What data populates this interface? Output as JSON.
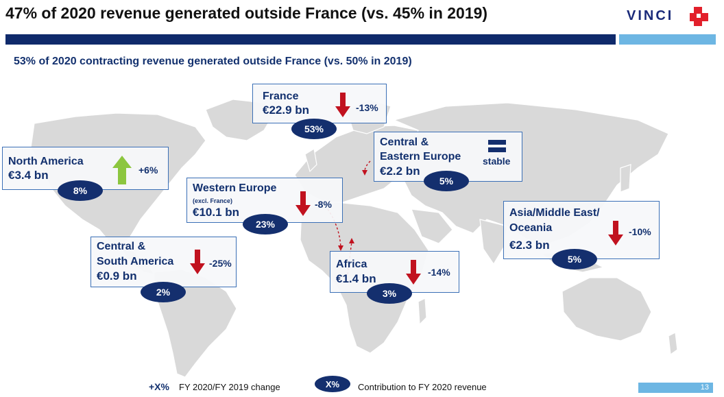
{
  "title": "47% of 2020 revenue generated outside France (vs. 45% in 2019)",
  "subtitle": "53% of 2020 contracting revenue generated outside France (vs. 50% in 2019)",
  "logo": {
    "text": "VINCI"
  },
  "regions": {
    "france": {
      "name": "France",
      "amount": "€22.9 bn",
      "change": "-13%",
      "share": "53%",
      "trend": "down"
    },
    "north_america": {
      "name": "North America",
      "amount": "€3.4 bn",
      "change": "+6%",
      "share": "8%",
      "trend": "up"
    },
    "ce_europe": {
      "name_line1": "Central &",
      "name_line2": "Eastern Europe",
      "amount": "€2.2 bn",
      "change": "stable",
      "share": "5%",
      "trend": "stable"
    },
    "western_europe": {
      "name": "Western Europe",
      "note": "(excl. France)",
      "amount": "€10.1 bn",
      "change": "-8%",
      "share": "23%",
      "trend": "down"
    },
    "asia": {
      "name_line1": "Asia/Middle East/",
      "name_line2": "Oceania",
      "amount": "€2.3 bn",
      "change": "-10%",
      "share": "5%",
      "trend": "down"
    },
    "cs_america": {
      "name_line1": "Central &",
      "name_line2": "South America",
      "amount": "€0.9 bn",
      "change": "-25%",
      "share": "2%",
      "trend": "down"
    },
    "africa": {
      "name": "Africa",
      "amount": "€1.4 bn",
      "change": "-14%",
      "share": "3%",
      "trend": "down"
    }
  },
  "legend": {
    "change_symbol": "+X%",
    "change_label": "FY 2020/FY 2019 change",
    "badge_symbol": "X%",
    "badge_label": "Contribution to FY 2020 revenue"
  },
  "page_number": "13",
  "colors": {
    "navy": "#142f6e",
    "light_blue": "#6db6e3",
    "down_arrow": "#c1121f",
    "up_arrow": "#8cc63f",
    "map_land": "#d9d9d9"
  }
}
